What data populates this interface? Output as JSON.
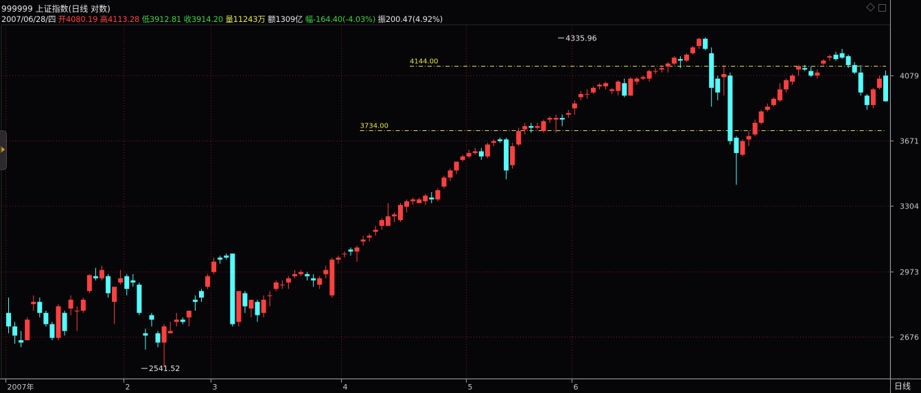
{
  "header": {
    "title": "999999 上证指数(日线 对数)",
    "date": "2007/06/28/四",
    "open_label": "开",
    "open": "4080.19",
    "high_label": "高",
    "high": "4113.28",
    "low_label": "低",
    "low": "3912.81",
    "close_label": "收",
    "close": "3914.20",
    "volume_label": "量",
    "volume": "11243万",
    "amount_label": "额",
    "amount": "1309亿",
    "change_label": "幅",
    "change": "-164.40(-4.03%)",
    "amplitude_label": "振",
    "amplitude": "200.47(4.92%)"
  },
  "period_label": "日线",
  "colors": {
    "up": "#ff4040",
    "down": "#54ffff",
    "grid": "#8b1a1a",
    "axis": "#a0a0a0",
    "ref_line": "#e6e64a",
    "background": "#060608"
  },
  "chart_data": {
    "type": "candlestick",
    "scale": "log",
    "ylim": [
      2500,
      4420
    ],
    "y_ticks": [
      2676,
      2973,
      3304,
      3671,
      4079
    ],
    "x_ticks": [
      "2007年",
      "2",
      "3",
      "4",
      "5",
      "6"
    ],
    "x_tick_index": [
      0,
      19,
      33,
      54,
      74,
      91
    ],
    "reference_lines": [
      {
        "label": "4144.00",
        "value": 4144.0,
        "start_index": 65
      },
      {
        "label": "3734.00",
        "value": 3734.0,
        "start_index": 57
      }
    ],
    "annotations": [
      {
        "label": "4335.96",
        "value": 4335.96,
        "index": 88,
        "type": "high"
      },
      {
        "label": "2541.52",
        "value": 2541.52,
        "index": 21,
        "type": "low"
      }
    ],
    "ohlc": [
      [
        2780,
        2850,
        2690,
        2720
      ],
      [
        2720,
        2740,
        2645,
        2680
      ],
      [
        2660,
        2700,
        2630,
        2650
      ],
      [
        2660,
        2760,
        2660,
        2750
      ],
      [
        2820,
        2860,
        2790,
        2830
      ],
      [
        2830,
        2850,
        2760,
        2780
      ],
      [
        2780,
        2790,
        2720,
        2730
      ],
      [
        2730,
        2740,
        2660,
        2670
      ],
      [
        2670,
        2820,
        2660,
        2810
      ],
      [
        2780,
        2790,
        2680,
        2700
      ],
      [
        2800,
        2860,
        2770,
        2840
      ],
      [
        2790,
        2810,
        2700,
        2790
      ],
      [
        2790,
        2850,
        2780,
        2840
      ],
      [
        2880,
        2960,
        2870,
        2955
      ],
      [
        2950,
        2990,
        2930,
        2940
      ],
      [
        2940,
        3000,
        2930,
        2980
      ],
      [
        2950,
        2960,
        2850,
        2870
      ],
      [
        2830,
        2900,
        2730,
        2900
      ],
      [
        2920,
        2980,
        2910,
        2940
      ],
      [
        2950,
        2960,
        2860,
        2890
      ],
      [
        2930,
        2960,
        2900,
        2920
      ],
      [
        2910,
        2920,
        2770,
        2780
      ],
      [
        2690,
        2710,
        2620,
        2680
      ],
      [
        2770,
        2780,
        2720,
        2750
      ],
      [
        2690,
        2700,
        2630,
        2650
      ],
      [
        2650,
        2730,
        2545,
        2720
      ],
      [
        2690,
        2740,
        2690,
        2700
      ],
      [
        2740,
        2780,
        2720,
        2750
      ],
      [
        2750,
        2760,
        2730,
        2740
      ],
      [
        2760,
        2790,
        2720,
        2790
      ],
      [
        2840,
        2860,
        2790,
        2830
      ],
      [
        2880,
        2890,
        2830,
        2850
      ],
      [
        2900,
        2960,
        2890,
        2950
      ],
      [
        2970,
        3040,
        2960,
        3020
      ],
      [
        3040,
        3050,
        3010,
        3030
      ],
      [
        3050,
        3060,
        3030,
        3040
      ],
      [
        3060,
        3060,
        2720,
        2730
      ],
      [
        2740,
        2880,
        2720,
        2880
      ],
      [
        2870,
        2880,
        2780,
        2810
      ],
      [
        2800,
        2840,
        2760,
        2840
      ],
      [
        2830,
        2840,
        2740,
        2770
      ],
      [
        2780,
        2860,
        2760,
        2840
      ],
      [
        2860,
        2880,
        2810,
        2860
      ],
      [
        2890,
        2930,
        2880,
        2920
      ],
      [
        2910,
        2930,
        2890,
        2910
      ],
      [
        2920,
        2950,
        2890,
        2940
      ],
      [
        2950,
        2980,
        2940,
        2960
      ],
      [
        2960,
        2980,
        2950,
        2970
      ],
      [
        2960,
        2970,
        2930,
        2950
      ],
      [
        2940,
        2960,
        2900,
        2930
      ],
      [
        2910,
        2950,
        2890,
        2940
      ],
      [
        2960,
        3000,
        2940,
        2980
      ],
      [
        2860,
        3040,
        2850,
        3030
      ],
      [
        3030,
        3050,
        3010,
        3040
      ],
      [
        3060,
        3070,
        3040,
        3060
      ],
      [
        3080,
        3090,
        3050,
        3070
      ],
      [
        3070,
        3100,
        3020,
        3090
      ],
      [
        3120,
        3150,
        3100,
        3130
      ],
      [
        3140,
        3160,
        3120,
        3150
      ],
      [
        3170,
        3200,
        3150,
        3180
      ],
      [
        3200,
        3240,
        3180,
        3230
      ],
      [
        3200,
        3320,
        3200,
        3250
      ],
      [
        3250,
        3270,
        3220,
        3260
      ],
      [
        3230,
        3320,
        3220,
        3310
      ],
      [
        3300,
        3340,
        3270,
        3330
      ],
      [
        3330,
        3350,
        3310,
        3340
      ],
      [
        3320,
        3350,
        3320,
        3340
      ],
      [
        3330,
        3370,
        3310,
        3360
      ],
      [
        3350,
        3380,
        3320,
        3340
      ],
      [
        3340,
        3400,
        3330,
        3390
      ],
      [
        3410,
        3470,
        3400,
        3460
      ],
      [
        3460,
        3510,
        3440,
        3500
      ],
      [
        3500,
        3550,
        3480,
        3550
      ],
      [
        3560,
        3590,
        3550,
        3580
      ],
      [
        3580,
        3620,
        3570,
        3600
      ],
      [
        3600,
        3630,
        3590,
        3610
      ],
      [
        3610,
        3630,
        3560,
        3580
      ],
      [
        3580,
        3660,
        3570,
        3650
      ],
      [
        3660,
        3680,
        3640,
        3670
      ],
      [
        3680,
        3690,
        3660,
        3670
      ],
      [
        3680,
        3690,
        3450,
        3500
      ],
      [
        3530,
        3660,
        3510,
        3640
      ],
      [
        3650,
        3750,
        3640,
        3730
      ],
      [
        3740,
        3780,
        3710,
        3760
      ],
      [
        3760,
        3780,
        3720,
        3750
      ],
      [
        3750,
        3780,
        3740,
        3760
      ],
      [
        3730,
        3800,
        3720,
        3790
      ],
      [
        3800,
        3820,
        3780,
        3810
      ],
      [
        3800,
        3830,
        3720,
        3810
      ],
      [
        3810,
        3830,
        3760,
        3800
      ],
      [
        3830,
        3860,
        3810,
        3840
      ],
      [
        3870,
        3920,
        3830,
        3900
      ],
      [
        3940,
        3980,
        3920,
        3960
      ],
      [
        3960,
        3990,
        3930,
        3960
      ],
      [
        3970,
        4010,
        3960,
        4000
      ],
      [
        4010,
        4030,
        3990,
        4020
      ],
      [
        4010,
        4040,
        3990,
        4030
      ],
      [
        3980,
        4000,
        3960,
        3990
      ],
      [
        3980,
        4050,
        3950,
        4040
      ],
      [
        4030,
        4060,
        3940,
        3950
      ],
      [
        3950,
        4070,
        3950,
        4060
      ],
      [
        4040,
        4070,
        4020,
        4060
      ],
      [
        4060,
        4080,
        4050,
        4070
      ],
      [
        4060,
        4120,
        4040,
        4110
      ],
      [
        4110,
        4130,
        4090,
        4110
      ],
      [
        4120,
        4150,
        4100,
        4130
      ],
      [
        4140,
        4170,
        4100,
        4160
      ],
      [
        4160,
        4210,
        4150,
        4200
      ],
      [
        4190,
        4210,
        4130,
        4180
      ],
      [
        4180,
        4230,
        4170,
        4220
      ],
      [
        4230,
        4280,
        4220,
        4270
      ],
      [
        4280,
        4336,
        4260,
        4330
      ],
      [
        4330,
        4340,
        4250,
        4260
      ],
      [
        4230,
        4270,
        3880,
        4000
      ],
      [
        4060,
        4080,
        3920,
        3970
      ],
      [
        4070,
        4150,
        3950,
        4090
      ],
      [
        4080,
        4100,
        3650,
        3670
      ],
      [
        3690,
        3700,
        3420,
        3600
      ],
      [
        3590,
        3680,
        3580,
        3670
      ],
      [
        3680,
        3730,
        3640,
        3700
      ],
      [
        3710,
        3800,
        3700,
        3780
      ],
      [
        3780,
        3860,
        3770,
        3850
      ],
      [
        3860,
        3900,
        3850,
        3880
      ],
      [
        3890,
        3940,
        3880,
        3930
      ],
      [
        3920,
        4030,
        3910,
        3990
      ],
      [
        3990,
        4060,
        3970,
        4050
      ],
      [
        4040,
        4090,
        4020,
        4080
      ],
      [
        4120,
        4150,
        4080,
        4140
      ],
      [
        4130,
        4150,
        4110,
        4120
      ],
      [
        4110,
        4140,
        4070,
        4080
      ],
      [
        4080,
        4120,
        4060,
        4100
      ],
      [
        4160,
        4190,
        4150,
        4180
      ],
      [
        4200,
        4220,
        4180,
        4210
      ],
      [
        4220,
        4240,
        4180,
        4190
      ],
      [
        4230,
        4260,
        4190,
        4200
      ],
      [
        4210,
        4220,
        4130,
        4150
      ],
      [
        4150,
        4170,
        4090,
        4100
      ],
      [
        4100,
        4150,
        3950,
        3970
      ],
      [
        3950,
        3960,
        3860,
        3890
      ],
      [
        3890,
        4000,
        3870,
        3990
      ],
      [
        4000,
        4080,
        3990,
        4060
      ],
      [
        4080,
        4113,
        3912,
        3914
      ]
    ]
  }
}
